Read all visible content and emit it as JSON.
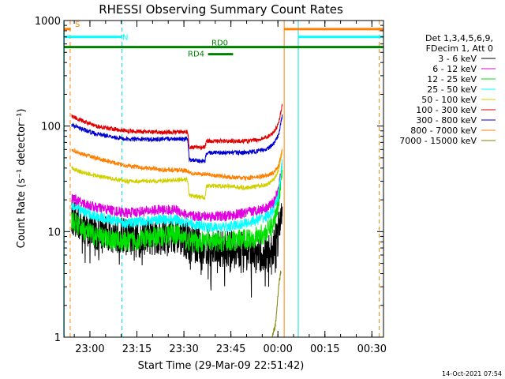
{
  "chart_data": {
    "type": "line",
    "title": "RHESSI Observing Summary Count Rates",
    "xlabel": "Start Time (29-Mar-09 22:51:42)",
    "ylabel": "Count Rate (s⁻¹ detector⁻¹)",
    "x_unit": "minutes after 22:51:42",
    "xlim": [
      0,
      102
    ],
    "ylim": [
      1,
      1000
    ],
    "yscale": "log",
    "x_ticks": [
      {
        "x": 8.3,
        "label": "23:00"
      },
      {
        "x": 23.3,
        "label": "23:15"
      },
      {
        "x": 38.3,
        "label": "23:30"
      },
      {
        "x": 53.3,
        "label": "23:45"
      },
      {
        "x": 68.3,
        "label": "00:00"
      },
      {
        "x": 83.3,
        "label": "00:15"
      },
      {
        "x": 98.3,
        "label": "00:30"
      }
    ],
    "y_ticks": [
      {
        "y": 1,
        "label": "1"
      },
      {
        "y": 10,
        "label": "10"
      },
      {
        "y": 100,
        "label": "100"
      },
      {
        "y": 1000,
        "label": "1000"
      }
    ],
    "legend_header": [
      "Det 1,3,4,5,6,9,",
      "FDecim 1, Att 0"
    ],
    "legend_position": "right",
    "series": [
      {
        "name": "3 - 6 keV",
        "color": "#000000",
        "noise": 0.18,
        "gap": true,
        "points": [
          [
            2.5,
            14
          ],
          [
            5,
            12
          ],
          [
            10,
            10
          ],
          [
            20,
            9
          ],
          [
            30,
            9
          ],
          [
            36,
            9.5
          ],
          [
            40,
            8
          ],
          [
            46,
            7
          ],
          [
            52,
            7
          ],
          [
            58,
            6.5
          ],
          [
            62,
            6
          ],
          [
            65,
            6
          ],
          [
            67,
            7
          ],
          [
            68.5,
            11
          ],
          [
            69.7,
            18
          ]
        ]
      },
      {
        "name": "6 - 12 keV",
        "color": "#e000e0",
        "noise": 0.05,
        "points": [
          [
            2.5,
            21
          ],
          [
            5,
            19
          ],
          [
            10,
            17
          ],
          [
            20,
            15
          ],
          [
            30,
            16
          ],
          [
            36,
            16
          ],
          [
            40,
            14
          ],
          [
            46,
            14
          ],
          [
            52,
            14
          ],
          [
            58,
            15
          ],
          [
            62,
            16
          ],
          [
            65,
            17
          ],
          [
            67,
            19
          ],
          [
            68.5,
            25
          ],
          [
            69.7,
            45
          ]
        ]
      },
      {
        "name": "12 - 25 keV",
        "color": "#00e000",
        "noise": 0.1,
        "points": [
          [
            2.5,
            13
          ],
          [
            5,
            11
          ],
          [
            10,
            9
          ],
          [
            20,
            8
          ],
          [
            30,
            9
          ],
          [
            36,
            9.5
          ],
          [
            40,
            8
          ],
          [
            46,
            8
          ],
          [
            52,
            8
          ],
          [
            58,
            8.5
          ],
          [
            62,
            9
          ],
          [
            65,
            10
          ],
          [
            67,
            12
          ],
          [
            68.5,
            20
          ],
          [
            69.7,
            42
          ]
        ]
      },
      {
        "name": "25 - 50 keV",
        "color": "#00ffff",
        "noise": 0.05,
        "points": [
          [
            2.5,
            18
          ],
          [
            5,
            16
          ],
          [
            10,
            14
          ],
          [
            20,
            12
          ],
          [
            30,
            13
          ],
          [
            36,
            13
          ],
          [
            40,
            12
          ],
          [
            46,
            11
          ],
          [
            52,
            11
          ],
          [
            58,
            12
          ],
          [
            62,
            13
          ],
          [
            65,
            14
          ],
          [
            67,
            16
          ],
          [
            68.5,
            22
          ],
          [
            69.7,
            45
          ]
        ]
      },
      {
        "name": "50 - 100 keV",
        "color": "#d0d000",
        "noise": 0.02,
        "points": [
          [
            2.5,
            40
          ],
          [
            5,
            37
          ],
          [
            10,
            34
          ],
          [
            20,
            30
          ],
          [
            30,
            30
          ],
          [
            36,
            31
          ],
          [
            39.5,
            31
          ],
          [
            40,
            22
          ],
          [
            45,
            21
          ],
          [
            45.5,
            27
          ],
          [
            52,
            27
          ],
          [
            58,
            26
          ],
          [
            62,
            27
          ],
          [
            65,
            28
          ],
          [
            67,
            31
          ],
          [
            68.5,
            38
          ],
          [
            69.7,
            58
          ]
        ]
      },
      {
        "name": "100 - 300 keV",
        "color": "#e00000",
        "noise": 0.02,
        "points": [
          [
            2.5,
            125
          ],
          [
            5,
            115
          ],
          [
            10,
            100
          ],
          [
            20,
            90
          ],
          [
            30,
            87
          ],
          [
            36,
            88
          ],
          [
            39.5,
            88
          ],
          [
            40,
            63
          ],
          [
            45,
            63
          ],
          [
            45.5,
            72
          ],
          [
            52,
            72
          ],
          [
            58,
            72
          ],
          [
            62,
            74
          ],
          [
            65,
            79
          ],
          [
            67,
            88
          ],
          [
            68.5,
            105
          ],
          [
            69.7,
            160
          ]
        ]
      },
      {
        "name": "300 - 800 keV",
        "color": "#0000d0",
        "noise": 0.02,
        "points": [
          [
            2.5,
            103
          ],
          [
            5,
            95
          ],
          [
            10,
            85
          ],
          [
            20,
            75
          ],
          [
            30,
            75
          ],
          [
            36,
            76
          ],
          [
            39.5,
            76
          ],
          [
            40,
            48
          ],
          [
            45,
            46
          ],
          [
            45.5,
            56
          ],
          [
            52,
            56
          ],
          [
            58,
            56
          ],
          [
            62,
            58
          ],
          [
            65,
            61
          ],
          [
            67,
            68
          ],
          [
            68.5,
            82
          ],
          [
            69.7,
            125
          ]
        ]
      },
      {
        "name": "800 - 7000 keV",
        "color": "#ff8000",
        "noise": 0.02,
        "points": [
          [
            2.5,
            60
          ],
          [
            5,
            55
          ],
          [
            10,
            50
          ],
          [
            20,
            42
          ],
          [
            30,
            39
          ],
          [
            36,
            38
          ],
          [
            39.5,
            38
          ],
          [
            40,
            36
          ],
          [
            45,
            35
          ],
          [
            52,
            33
          ],
          [
            58,
            32
          ],
          [
            62,
            33
          ],
          [
            65,
            34
          ],
          [
            67,
            36
          ],
          [
            68.5,
            42
          ],
          [
            69.7,
            60
          ]
        ]
      },
      {
        "name": "7000 - 15000 keV",
        "color": "#808000",
        "noise": 0.03,
        "points": [
          [
            66.5,
            1.05
          ],
          [
            67.5,
            1.3
          ],
          [
            68.2,
            2.2
          ],
          [
            68.8,
            3.5
          ],
          [
            69.3,
            4.3
          ]
        ]
      }
    ],
    "vertical_lines": [
      {
        "x": 0.1,
        "color": "#00e0e0",
        "style": "solid"
      },
      {
        "x": 2.0,
        "color": "#ff8000",
        "style": "dashed"
      },
      {
        "x": 18.5,
        "color": "#00e0e0",
        "style": "dashed"
      },
      {
        "x": 70.3,
        "color": "#ff8000",
        "style": "solid"
      },
      {
        "x": 74.8,
        "color": "#00e0e0",
        "style": "solid"
      },
      {
        "x": 100.6,
        "color": "#ff8000",
        "style": "dashed"
      }
    ],
    "flag_bars": [
      {
        "label": "S",
        "color": "#ff8000",
        "y": 830,
        "segments": [
          [
            0,
            2.2
          ],
          [
            70.3,
            102
          ]
        ]
      },
      {
        "label": "N",
        "color": "#00ffff",
        "y": 700,
        "segments": [
          [
            0,
            18.5
          ],
          [
            74.8,
            102
          ]
        ]
      },
      {
        "label": "RD0",
        "color": "#008000",
        "y": 560,
        "segments": [
          [
            0,
            102
          ]
        ]
      },
      {
        "label": "RD4",
        "color": "#008000",
        "y": 480,
        "segments": [
          [
            46,
            54
          ]
        ]
      }
    ],
    "timestamp": "14-Oct-2021 07:54"
  }
}
